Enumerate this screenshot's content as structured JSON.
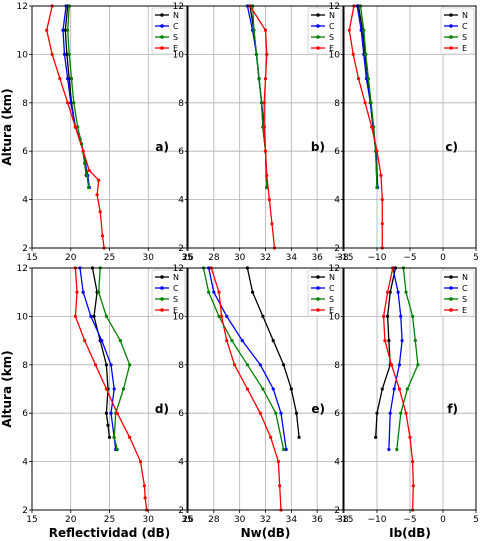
{
  "colors": {
    "N": "#000000",
    "C": "#0000ff",
    "S": "#008000",
    "E": "#ff0000",
    "grid": "#b0b0b0"
  },
  "chart_data": [
    {
      "type": "line",
      "panel": "a)",
      "xlabel": "",
      "ylabel": "Altura (km)",
      "xlim": [
        15,
        35
      ],
      "ylim": [
        2,
        12
      ],
      "xticks": [
        "15",
        "20",
        "25",
        "30",
        "35"
      ],
      "yticks": [
        "2",
        "4",
        "6",
        "8",
        "10",
        "12"
      ],
      "grid": true,
      "legend": "top-right",
      "series": [
        {
          "name": "N",
          "color": "#000000",
          "x": [
            19.6,
            19.3,
            19.5,
            19.8,
            20.1,
            20.6,
            21.2,
            21.6,
            21.8,
            22.0
          ],
          "y": [
            12,
            11,
            10,
            9,
            8,
            7,
            6.5,
            6,
            5.5,
            5.0
          ]
        },
        {
          "name": "C",
          "color": "#0000ff",
          "x": [
            19.4,
            19.0,
            19.2,
            19.6,
            20.0,
            20.6,
            21.4,
            21.9,
            22.2,
            22.4
          ],
          "y": [
            12,
            11,
            10,
            9,
            8,
            7,
            6.3,
            5.5,
            5.0,
            4.5
          ]
        },
        {
          "name": "S",
          "color": "#008000",
          "x": [
            19.8,
            19.6,
            19.8,
            20.1,
            20.4,
            20.9,
            21.4,
            21.8,
            22.1,
            22.3
          ],
          "y": [
            12,
            11,
            10,
            9,
            8,
            7,
            6.3,
            5.5,
            5.0,
            4.5
          ]
        },
        {
          "name": "E",
          "color": "#ff0000",
          "x": [
            17.6,
            16.9,
            17.6,
            18.6,
            19.6,
            20.6,
            21.6,
            22.4,
            23.6,
            23.4,
            23.8,
            24.1,
            24.3
          ],
          "y": [
            12,
            11,
            10,
            9,
            8,
            7,
            6,
            5.2,
            4.8,
            4.2,
            3.5,
            2.5,
            2.0
          ]
        }
      ]
    },
    {
      "type": "line",
      "panel": "b)",
      "xlabel": "",
      "ylabel": "",
      "xlim": [
        26,
        38
      ],
      "ylim": [
        2,
        12
      ],
      "xticks": [
        "26",
        "28",
        "30",
        "32",
        "34",
        "36",
        "38"
      ],
      "yticks": [
        "2",
        "4",
        "6",
        "8",
        "10",
        "12"
      ],
      "grid": true,
      "legend": "top-right",
      "series": [
        {
          "name": "N",
          "color": "#000000",
          "x": [
            30.8,
            31.1,
            31.3,
            31.5,
            31.7,
            31.8,
            32.0,
            32.1
          ],
          "y": [
            12,
            11,
            10,
            9,
            8,
            7,
            6,
            4.5
          ]
        },
        {
          "name": "C",
          "color": "#0000ff",
          "x": [
            30.6,
            31.0,
            31.3,
            31.5,
            31.7,
            31.9,
            32.0,
            32.1
          ],
          "y": [
            12,
            11,
            10,
            9,
            8,
            7,
            6,
            4.5
          ]
        },
        {
          "name": "S",
          "color": "#008000",
          "x": [
            31.0,
            31.1,
            31.3,
            31.5,
            31.7,
            31.8,
            32.0,
            32.1
          ],
          "y": [
            12,
            11,
            10,
            9,
            8,
            7,
            6,
            4.5
          ]
        },
        {
          "name": "E",
          "color": "#ff0000",
          "x": [
            30.8,
            32.0,
            32.1,
            32.0,
            31.9,
            31.9,
            32.0,
            32.1,
            32.3,
            32.5,
            32.7
          ],
          "y": [
            12,
            11,
            10,
            9,
            8,
            7,
            6,
            5,
            4,
            3,
            2
          ]
        }
      ]
    },
    {
      "type": "line",
      "panel": "c)",
      "xlabel": "",
      "ylabel": "",
      "xlim": [
        -15,
        5
      ],
      "ylim": [
        2,
        12
      ],
      "xticks": [
        "−15",
        "−10",
        "−5",
        "0",
        "5"
      ],
      "yticks": [
        "2",
        "4",
        "6",
        "8",
        "10",
        "12"
      ],
      "grid": true,
      "legend": "top-right",
      "series": [
        {
          "name": "N",
          "color": "#000000",
          "x": [
            -12.8,
            -12.2,
            -11.8,
            -11.4,
            -11.0,
            -10.6,
            -10.2,
            -10.0
          ],
          "y": [
            12,
            11,
            10,
            9,
            8,
            7,
            6,
            4.5
          ]
        },
        {
          "name": "C",
          "color": "#0000ff",
          "x": [
            -13.0,
            -12.4,
            -12.0,
            -11.6,
            -11.0,
            -10.6,
            -10.1,
            -9.9
          ],
          "y": [
            12,
            11,
            10,
            9,
            8,
            7,
            6,
            4.5
          ]
        },
        {
          "name": "S",
          "color": "#008000",
          "x": [
            -12.5,
            -12.0,
            -11.7,
            -11.3,
            -10.9,
            -10.5,
            -10.2,
            -10.0
          ],
          "y": [
            12,
            11,
            10,
            9,
            8,
            7,
            6,
            4.5
          ]
        },
        {
          "name": "E",
          "color": "#ff0000",
          "x": [
            -13.5,
            -14.2,
            -13.6,
            -12.8,
            -11.8,
            -10.8,
            -10.0,
            -9.4,
            -9.2,
            -9.2,
            -9.2
          ],
          "y": [
            12,
            11,
            10,
            9,
            8,
            7,
            6,
            5,
            4,
            3,
            2
          ]
        }
      ]
    },
    {
      "type": "line",
      "panel": "d)",
      "xlabel": "Reflectividad (dB)",
      "ylabel": "Altura (km)",
      "xlim": [
        15,
        35
      ],
      "ylim": [
        2,
        12
      ],
      "xticks": [
        "15",
        "20",
        "25",
        "30",
        "35"
      ],
      "yticks": [
        "2",
        "4",
        "6",
        "8",
        "10",
        "12"
      ],
      "grid": true,
      "legend": "top-right",
      "series": [
        {
          "name": "N",
          "color": "#000000",
          "x": [
            22.8,
            23.4,
            23.0,
            23.8,
            24.6,
            24.8,
            24.6,
            24.8,
            25.0
          ],
          "y": [
            12,
            11,
            10,
            9,
            8,
            7,
            6,
            5.5,
            5.0
          ]
        },
        {
          "name": "C",
          "color": "#0000ff",
          "x": [
            21.2,
            21.6,
            22.6,
            24.0,
            25.2,
            25.6,
            25.2,
            25.6,
            25.8
          ],
          "y": [
            12,
            11,
            10,
            9,
            8,
            7,
            6,
            5,
            4.5
          ]
        },
        {
          "name": "S",
          "color": "#008000",
          "x": [
            23.8,
            23.6,
            24.6,
            26.4,
            27.6,
            26.8,
            25.8,
            25.6,
            26.0
          ],
          "y": [
            12,
            11,
            10,
            9,
            8,
            7,
            6,
            5,
            4.5
          ]
        },
        {
          "name": "E",
          "color": "#ff0000",
          "x": [
            20.6,
            20.8,
            20.6,
            21.8,
            23.2,
            24.6,
            26.0,
            27.6,
            29.0,
            29.5,
            29.6,
            29.8
          ],
          "y": [
            12,
            11,
            10,
            9,
            8,
            7,
            6,
            5,
            4,
            3,
            2.5,
            2.0
          ]
        }
      ]
    },
    {
      "type": "line",
      "panel": "e)",
      "xlabel": "Nw(dB)",
      "ylabel": "",
      "xlim": [
        26,
        38
      ],
      "ylim": [
        2,
        12
      ],
      "xticks": [
        "26",
        "28",
        "30",
        "32",
        "34",
        "36",
        "38"
      ],
      "yticks": [
        "2",
        "4",
        "6",
        "8",
        "10",
        "12"
      ],
      "grid": true,
      "legend": "top-right",
      "series": [
        {
          "name": "N",
          "color": "#000000",
          "x": [
            30.6,
            31.0,
            31.8,
            32.6,
            33.4,
            34.0,
            34.4,
            34.6
          ],
          "y": [
            12,
            11,
            10,
            9,
            8,
            7,
            6,
            5
          ]
        },
        {
          "name": "C",
          "color": "#0000ff",
          "x": [
            27.6,
            28.0,
            29.0,
            30.2,
            31.6,
            32.6,
            33.2,
            33.6
          ],
          "y": [
            12,
            11,
            10,
            9,
            8,
            7,
            6,
            4.5
          ]
        },
        {
          "name": "S",
          "color": "#008000",
          "x": [
            27.2,
            27.6,
            28.4,
            29.4,
            30.6,
            31.8,
            32.8,
            33.4
          ],
          "y": [
            12,
            11,
            10,
            9,
            8,
            7,
            6,
            4.5
          ]
        },
        {
          "name": "E",
          "color": "#ff0000",
          "x": [
            27.8,
            28.4,
            28.6,
            29.0,
            29.6,
            30.6,
            31.6,
            32.4,
            33.0,
            33.1,
            33.2
          ],
          "y": [
            12,
            11,
            10,
            9,
            8,
            7,
            6,
            5,
            4,
            3,
            2
          ]
        }
      ]
    },
    {
      "type": "line",
      "panel": "f)",
      "xlabel": "Ib(dB)",
      "ylabel": "",
      "xlim": [
        -15,
        5
      ],
      "ylim": [
        2,
        12
      ],
      "xticks": [
        "−15",
        "−10",
        "−5",
        "0",
        "5"
      ],
      "yticks": [
        "2",
        "4",
        "6",
        "8",
        "10",
        "12"
      ],
      "grid": true,
      "legend": "top-right",
      "series": [
        {
          "name": "N",
          "color": "#000000",
          "x": [
            -7.2,
            -8.0,
            -8.4,
            -8.2,
            -8.0,
            -9.2,
            -10.0,
            -10.2
          ],
          "y": [
            12,
            11,
            10,
            9,
            8,
            7,
            6,
            5
          ]
        },
        {
          "name": "C",
          "color": "#0000ff",
          "x": [
            -7.6,
            -6.8,
            -6.4,
            -6.2,
            -6.6,
            -7.4,
            -8.0,
            -8.2
          ],
          "y": [
            12,
            11,
            10,
            9,
            8,
            7,
            6,
            4.5
          ]
        },
        {
          "name": "S",
          "color": "#008000",
          "x": [
            -6.0,
            -5.6,
            -4.6,
            -4.2,
            -3.8,
            -5.4,
            -6.4,
            -7.0
          ],
          "y": [
            12,
            11,
            10,
            9,
            8,
            7,
            6,
            4.5
          ]
        },
        {
          "name": "E",
          "color": "#ff0000",
          "x": [
            -7.6,
            -8.4,
            -9.0,
            -8.8,
            -7.8,
            -6.6,
            -5.6,
            -5.0,
            -4.6,
            -4.5,
            -4.6
          ],
          "y": [
            12,
            11,
            10,
            9,
            8,
            7,
            6,
            5,
            4,
            3,
            2
          ]
        }
      ]
    }
  ]
}
